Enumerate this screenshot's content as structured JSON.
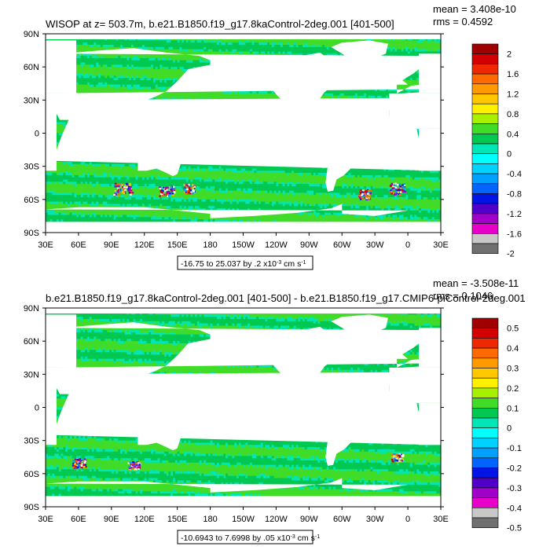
{
  "chart_data": [
    {
      "type": "heatmap",
      "title": "WISOP at z= 503.7m, b.e21.B1850.f19_g17.8kaControl-2deg.001 [401-500]",
      "stats": {
        "mean": "mean = 3.408e-10",
        "rms": "rms = 0.4592"
      },
      "y_ticks": [
        "90N",
        "60N",
        "30N",
        "0",
        "30S",
        "60S",
        "90S"
      ],
      "x_ticks": [
        "30E",
        "60E",
        "90E",
        "120E",
        "150E",
        "180",
        "150W",
        "120W",
        "90W",
        "60W",
        "30W",
        "0",
        "30E"
      ],
      "info_box": {
        "prefix": "-16.75 to 25.037 by .2 x10",
        "exp": "-3",
        "unit": " cm s",
        "uexp": "-1"
      },
      "colorbar": {
        "labels": [
          "2",
          "1.6",
          "1.2",
          "0.8",
          "0.4",
          "0",
          "-0.4",
          "-0.8",
          "-1.2",
          "-1.6",
          "-2"
        ],
        "colors": [
          "#a00000",
          "#d20000",
          "#f02800",
          "#ff6a00",
          "#ff9a00",
          "#ffc800",
          "#fff000",
          "#a8f000",
          "#40dc28",
          "#00c850",
          "#00e6b4",
          "#00ffff",
          "#00d2ff",
          "#00a0ff",
          "#0064ff",
          "#0014e6",
          "#5000c8",
          "#a000c8",
          "#e600c8",
          "#c8c8c8",
          "#707070"
        ]
      }
    },
    {
      "type": "heatmap",
      "title": "b.e21.B1850.f19_g17.8kaControl-2deg.001 [401-500] - b.e21.B1850.f19_g17.CMIP6-piControl-2deg.001",
      "stats": {
        "mean": "mean = -3.508e-11",
        "rms": "rms = 0.1046"
      },
      "y_ticks": [
        "90N",
        "60N",
        "30N",
        "0",
        "30S",
        "60S",
        "90S"
      ],
      "x_ticks": [
        "30E",
        "60E",
        "90E",
        "120E",
        "150E",
        "180",
        "150W",
        "120W",
        "90W",
        "60W",
        "30W",
        "0",
        "30E"
      ],
      "info_box": {
        "prefix": "-10.6943 to 7.6998 by .05 x10",
        "exp": "-3",
        "unit": " cm s",
        "uexp": "-1"
      },
      "colorbar": {
        "labels": [
          "0.5",
          "0.4",
          "0.3",
          "0.2",
          "0.1",
          "0",
          "-0.1",
          "-0.2",
          "-0.3",
          "-0.4",
          "-0.5"
        ],
        "colors": [
          "#a00000",
          "#d20000",
          "#f02800",
          "#ff6a00",
          "#ff9a00",
          "#ffc800",
          "#fff000",
          "#a8f000",
          "#40dc28",
          "#00c850",
          "#00e6b4",
          "#00ffff",
          "#00d2ff",
          "#00a0ff",
          "#0064ff",
          "#0014e6",
          "#5000c8",
          "#a000c8",
          "#e600c8",
          "#c8c8c8",
          "#707070"
        ]
      }
    }
  ]
}
